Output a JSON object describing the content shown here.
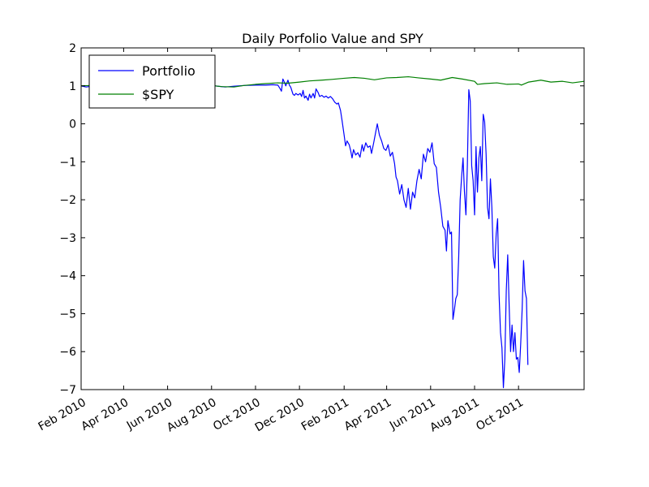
{
  "chart_data": {
    "type": "line",
    "title": "Daily Porfolio Value and SPY",
    "xlabel": "",
    "ylabel": "",
    "xlim": [
      "2010-02-01",
      "2011-12-31"
    ],
    "ylim": [
      -7,
      2
    ],
    "grid": false,
    "legend_position": "top-left",
    "x_ticks": [
      "2010-02-01",
      "2010-04-01",
      "2010-06-01",
      "2010-08-01",
      "2010-10-01",
      "2010-12-01",
      "2011-02-01",
      "2011-04-01",
      "2011-06-01",
      "2011-08-01",
      "2011-10-01"
    ],
    "x_tick_labels": [
      "Feb 2010",
      "Apr 2010",
      "Jun 2010",
      "Aug 2010",
      "Oct 2010",
      "Dec 2010",
      "Feb 2011",
      "Apr 2011",
      "Jun 2011",
      "Aug 2011",
      "Oct 2011"
    ],
    "y_ticks": [
      2,
      1,
      0,
      -1,
      -2,
      -3,
      -4,
      -5,
      -6,
      -7
    ],
    "y_tick_labels": [
      "2",
      "1",
      "0",
      "−1",
      "−2",
      "−3",
      "−4",
      "−5",
      "−6",
      "−7"
    ],
    "series": [
      {
        "name": "Portfolio",
        "color": "#0000ff",
        "points": [
          [
            "2010-02-01",
            1.0
          ],
          [
            "2010-02-03",
            0.99
          ],
          [
            "2010-02-08",
            0.97
          ],
          [
            "2010-02-15",
            0.99
          ],
          [
            "2010-02-22",
            1.0
          ],
          [
            "2010-03-01",
            1.01
          ],
          [
            "2010-03-15",
            1.02
          ],
          [
            "2010-04-01",
            1.02
          ],
          [
            "2010-04-15",
            1.03
          ],
          [
            "2010-05-01",
            1.02
          ],
          [
            "2010-05-15",
            1.01
          ],
          [
            "2010-06-01",
            1.0
          ],
          [
            "2010-06-15",
            1.0
          ],
          [
            "2010-07-01",
            0.98
          ],
          [
            "2010-07-15",
            0.99
          ],
          [
            "2010-08-01",
            1.01
          ],
          [
            "2010-08-10",
            0.99
          ],
          [
            "2010-08-20",
            0.97
          ],
          [
            "2010-09-01",
            0.99
          ],
          [
            "2010-09-15",
            1.01
          ],
          [
            "2010-10-01",
            1.02
          ],
          [
            "2010-10-15",
            1.02
          ],
          [
            "2010-10-25",
            1.03
          ],
          [
            "2010-11-01",
            1.02
          ],
          [
            "2010-11-04",
            0.93
          ],
          [
            "2010-11-06",
            0.86
          ],
          [
            "2010-11-08",
            1.18
          ],
          [
            "2010-11-10",
            1.1
          ],
          [
            "2010-11-12",
            1.0
          ],
          [
            "2010-11-15",
            1.15
          ],
          [
            "2010-11-17",
            1.02
          ],
          [
            "2010-11-19",
            0.96
          ],
          [
            "2010-11-22",
            0.78
          ],
          [
            "2010-11-24",
            0.75
          ],
          [
            "2010-11-26",
            0.8
          ],
          [
            "2010-11-29",
            0.76
          ],
          [
            "2010-12-02",
            0.8
          ],
          [
            "2010-12-04",
            0.72
          ],
          [
            "2010-12-06",
            0.88
          ],
          [
            "2010-12-08",
            0.68
          ],
          [
            "2010-12-10",
            0.73
          ],
          [
            "2010-12-13",
            0.62
          ],
          [
            "2010-12-15",
            0.78
          ],
          [
            "2010-12-17",
            0.68
          ],
          [
            "2010-12-20",
            0.8
          ],
          [
            "2010-12-22",
            0.68
          ],
          [
            "2010-12-24",
            0.92
          ],
          [
            "2010-12-27",
            0.82
          ],
          [
            "2010-12-29",
            0.72
          ],
          [
            "2011-01-01",
            0.75
          ],
          [
            "2011-01-04",
            0.7
          ],
          [
            "2011-01-07",
            0.73
          ],
          [
            "2011-01-10",
            0.68
          ],
          [
            "2011-01-13",
            0.72
          ],
          [
            "2011-01-16",
            0.66
          ],
          [
            "2011-01-19",
            0.57
          ],
          [
            "2011-01-22",
            0.52
          ],
          [
            "2011-01-24",
            0.55
          ],
          [
            "2011-01-27",
            0.35
          ],
          [
            "2011-01-29",
            0.1
          ],
          [
            "2011-02-01",
            -0.3
          ],
          [
            "2011-02-03",
            -0.58
          ],
          [
            "2011-02-05",
            -0.45
          ],
          [
            "2011-02-08",
            -0.55
          ],
          [
            "2011-02-10",
            -0.7
          ],
          [
            "2011-02-12",
            -0.9
          ],
          [
            "2011-02-14",
            -0.68
          ],
          [
            "2011-02-17",
            -0.82
          ],
          [
            "2011-02-20",
            -0.76
          ],
          [
            "2011-02-23",
            -0.88
          ],
          [
            "2011-02-26",
            -0.55
          ],
          [
            "2011-02-28",
            -0.72
          ],
          [
            "2011-03-03",
            -0.5
          ],
          [
            "2011-03-06",
            -0.62
          ],
          [
            "2011-03-09",
            -0.58
          ],
          [
            "2011-03-11",
            -0.78
          ],
          [
            "2011-03-14",
            -0.5
          ],
          [
            "2011-03-17",
            -0.2
          ],
          [
            "2011-03-19",
            0.0
          ],
          [
            "2011-03-22",
            -0.3
          ],
          [
            "2011-03-25",
            -0.45
          ],
          [
            "2011-03-28",
            -0.65
          ],
          [
            "2011-03-31",
            -0.7
          ],
          [
            "2011-04-03",
            -0.55
          ],
          [
            "2011-04-06",
            -0.85
          ],
          [
            "2011-04-09",
            -0.75
          ],
          [
            "2011-04-12",
            -1.05
          ],
          [
            "2011-04-14",
            -1.4
          ],
          [
            "2011-04-16",
            -1.5
          ],
          [
            "2011-04-19",
            -1.85
          ],
          [
            "2011-04-22",
            -1.6
          ],
          [
            "2011-04-25",
            -2.0
          ],
          [
            "2011-04-28",
            -2.2
          ],
          [
            "2011-05-01",
            -1.7
          ],
          [
            "2011-05-04",
            -2.25
          ],
          [
            "2011-05-07",
            -1.8
          ],
          [
            "2011-05-10",
            -1.95
          ],
          [
            "2011-05-13",
            -1.5
          ],
          [
            "2011-05-16",
            -1.2
          ],
          [
            "2011-05-19",
            -1.45
          ],
          [
            "2011-05-22",
            -0.8
          ],
          [
            "2011-05-25",
            -1.0
          ],
          [
            "2011-05-28",
            -0.65
          ],
          [
            "2011-05-31",
            -0.75
          ],
          [
            "2011-06-03",
            -0.5
          ],
          [
            "2011-06-06",
            -1.05
          ],
          [
            "2011-06-09",
            -1.15
          ],
          [
            "2011-06-12",
            -1.8
          ],
          [
            "2011-06-15",
            -2.2
          ],
          [
            "2011-06-18",
            -2.7
          ],
          [
            "2011-06-21",
            -2.8
          ],
          [
            "2011-06-23",
            -3.35
          ],
          [
            "2011-06-25",
            -2.55
          ],
          [
            "2011-06-28",
            -2.9
          ],
          [
            "2011-06-30",
            -2.85
          ],
          [
            "2011-07-02",
            -5.15
          ],
          [
            "2011-07-04",
            -4.9
          ],
          [
            "2011-07-06",
            -4.6
          ],
          [
            "2011-07-08",
            -4.5
          ],
          [
            "2011-07-10",
            -3.5
          ],
          [
            "2011-07-12",
            -2.0
          ],
          [
            "2011-07-14",
            -1.4
          ],
          [
            "2011-07-16",
            -0.9
          ],
          [
            "2011-07-18",
            -1.8
          ],
          [
            "2011-07-20",
            -2.4
          ],
          [
            "2011-07-22",
            -1.1
          ],
          [
            "2011-07-24",
            0.9
          ],
          [
            "2011-07-26",
            0.6
          ],
          [
            "2011-07-28",
            -1.1
          ],
          [
            "2011-07-30",
            -1.5
          ],
          [
            "2011-08-01",
            -2.4
          ],
          [
            "2011-08-03",
            -0.6
          ],
          [
            "2011-08-05",
            -1.8
          ],
          [
            "2011-08-07",
            -0.9
          ],
          [
            "2011-08-09",
            -0.6
          ],
          [
            "2011-08-11",
            -1.5
          ],
          [
            "2011-08-13",
            0.25
          ],
          [
            "2011-08-15",
            0.05
          ],
          [
            "2011-08-17",
            -0.8
          ],
          [
            "2011-08-19",
            -2.2
          ],
          [
            "2011-08-21",
            -2.5
          ],
          [
            "2011-08-23",
            -1.45
          ],
          [
            "2011-08-25",
            -2.2
          ],
          [
            "2011-08-27",
            -3.5
          ],
          [
            "2011-08-29",
            -3.8
          ],
          [
            "2011-08-31",
            -2.9
          ],
          [
            "2011-09-02",
            -2.5
          ],
          [
            "2011-09-04",
            -4.5
          ],
          [
            "2011-09-06",
            -5.5
          ],
          [
            "2011-09-08",
            -5.9
          ],
          [
            "2011-09-10",
            -6.95
          ],
          [
            "2011-09-12",
            -6.2
          ],
          [
            "2011-09-14",
            -4.4
          ],
          [
            "2011-09-16",
            -3.45
          ],
          [
            "2011-09-18",
            -4.8
          ],
          [
            "2011-09-20",
            -6.0
          ],
          [
            "2011-09-22",
            -5.3
          ],
          [
            "2011-09-24",
            -6.0
          ],
          [
            "2011-09-26",
            -5.5
          ],
          [
            "2011-09-28",
            -6.2
          ],
          [
            "2011-09-30",
            -6.15
          ],
          [
            "2011-10-02",
            -6.55
          ],
          [
            "2011-10-04",
            -5.8
          ],
          [
            "2011-10-06",
            -4.9
          ],
          [
            "2011-10-08",
            -3.6
          ],
          [
            "2011-10-10",
            -4.4
          ],
          [
            "2011-10-12",
            -4.6
          ],
          [
            "2011-10-14",
            -6.35
          ]
        ]
      },
      {
        "name": "$SPY",
        "color": "#008000",
        "points": [
          [
            "2010-02-01",
            1.0
          ],
          [
            "2010-02-15",
            1.01
          ],
          [
            "2010-03-01",
            1.02
          ],
          [
            "2010-03-15",
            1.03
          ],
          [
            "2010-04-01",
            1.04
          ],
          [
            "2010-04-15",
            1.05
          ],
          [
            "2010-05-01",
            1.02
          ],
          [
            "2010-05-15",
            1.0
          ],
          [
            "2010-06-01",
            0.99
          ],
          [
            "2010-06-15",
            1.0
          ],
          [
            "2010-07-01",
            0.97
          ],
          [
            "2010-07-15",
            0.98
          ],
          [
            "2010-08-01",
            1.01
          ],
          [
            "2010-08-15",
            0.98
          ],
          [
            "2010-09-01",
            0.97
          ],
          [
            "2010-09-15",
            1.01
          ],
          [
            "2010-10-01",
            1.04
          ],
          [
            "2010-10-15",
            1.06
          ],
          [
            "2010-11-01",
            1.08
          ],
          [
            "2010-11-15",
            1.07
          ],
          [
            "2010-12-01",
            1.1
          ],
          [
            "2010-12-15",
            1.13
          ],
          [
            "2011-01-01",
            1.15
          ],
          [
            "2011-01-15",
            1.17
          ],
          [
            "2011-02-01",
            1.2
          ],
          [
            "2011-02-15",
            1.22
          ],
          [
            "2011-03-01",
            1.2
          ],
          [
            "2011-03-15",
            1.16
          ],
          [
            "2011-04-01",
            1.21
          ],
          [
            "2011-04-15",
            1.22
          ],
          [
            "2011-05-01",
            1.24
          ],
          [
            "2011-05-15",
            1.21
          ],
          [
            "2011-06-01",
            1.18
          ],
          [
            "2011-06-15",
            1.15
          ],
          [
            "2011-07-01",
            1.22
          ],
          [
            "2011-07-15",
            1.18
          ],
          [
            "2011-08-01",
            1.12
          ],
          [
            "2011-08-05",
            1.04
          ],
          [
            "2011-08-15",
            1.06
          ],
          [
            "2011-09-01",
            1.08
          ],
          [
            "2011-09-15",
            1.04
          ],
          [
            "2011-10-01",
            1.05
          ],
          [
            "2011-10-05",
            1.02
          ],
          [
            "2011-10-15",
            1.1
          ],
          [
            "2011-11-01",
            1.15
          ],
          [
            "2011-11-15",
            1.1
          ],
          [
            "2011-12-01",
            1.12
          ],
          [
            "2011-12-15",
            1.08
          ],
          [
            "2011-12-31",
            1.12
          ]
        ]
      }
    ]
  }
}
